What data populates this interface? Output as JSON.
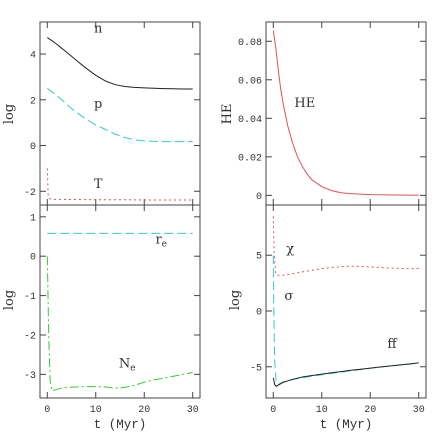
{
  "chart_data": [
    {
      "type": "line",
      "panel": "top-left",
      "ylabel": "log",
      "xlim": [
        -1.5,
        31.5
      ],
      "ylim": [
        -2.6,
        5.4
      ],
      "yticks": [
        -2,
        0,
        2,
        4
      ],
      "xticks": [
        0,
        10,
        20,
        30
      ],
      "series": [
        {
          "name": "n",
          "color": "#222222",
          "dash": "",
          "x": [
            0,
            1,
            2,
            3,
            4,
            5,
            6,
            7,
            8,
            10,
            12,
            14,
            16,
            18,
            20,
            22,
            24,
            26,
            28,
            30
          ],
          "y": [
            4.72,
            4.58,
            4.42,
            4.25,
            4.08,
            3.9,
            3.72,
            3.55,
            3.38,
            3.07,
            2.82,
            2.66,
            2.58,
            2.54,
            2.52,
            2.5,
            2.49,
            2.48,
            2.47,
            2.47
          ]
        },
        {
          "name": "p",
          "color": "#33cccc",
          "dash": "9,4",
          "x": [
            0,
            1,
            2,
            3,
            4,
            5,
            6,
            8,
            10,
            12,
            14,
            16,
            18,
            20,
            22,
            24,
            26,
            28,
            30
          ],
          "y": [
            2.5,
            2.35,
            2.18,
            2.0,
            1.8,
            1.62,
            1.45,
            1.15,
            0.9,
            0.7,
            0.5,
            0.35,
            0.25,
            0.2,
            0.18,
            0.17,
            0.17,
            0.17,
            0.17
          ]
        },
        {
          "name": "T",
          "color": "#e05252",
          "dash": "2,3",
          "x": [
            0,
            0.2,
            0.5,
            1,
            5,
            10,
            15,
            20,
            25,
            30
          ],
          "y": [
            -1.0,
            -2.2,
            -2.32,
            -2.35,
            -2.36,
            -2.37,
            -2.37,
            -2.38,
            -2.38,
            -2.38
          ]
        }
      ],
      "labels": [
        {
          "text": "n",
          "x": 10.5,
          "y": 4.95
        },
        {
          "text": "p",
          "x": 10.5,
          "y": 1.65
        },
        {
          "text": "T",
          "x": 10.5,
          "y": -1.85
        }
      ]
    },
    {
      "type": "line",
      "panel": "top-right",
      "ylabel": "HE",
      "xlim": [
        -1.5,
        31.5
      ],
      "ylim": [
        -0.005,
        0.09
      ],
      "yticks": [
        0,
        0.02,
        0.04,
        0.06,
        0.08
      ],
      "xticks": [
        0,
        10,
        20,
        30
      ],
      "series": [
        {
          "name": "HE",
          "color": "#e05252",
          "dash": "",
          "x": [
            0,
            0.5,
            1,
            1.5,
            2,
            3,
            4,
            5,
            6,
            7,
            8,
            10,
            12,
            14,
            16,
            20,
            25,
            30
          ],
          "y": [
            0.0855,
            0.077,
            0.066,
            0.056,
            0.048,
            0.036,
            0.027,
            0.02,
            0.015,
            0.011,
            0.008,
            0.0045,
            0.0025,
            0.0014,
            0.0009,
            0.0004,
            0.0002,
            0.0001
          ]
        }
      ],
      "labels": [
        {
          "text": "HE",
          "x": 6.5,
          "y": 0.046
        }
      ]
    },
    {
      "type": "line",
      "panel": "bottom-left",
      "ylabel": "log",
      "xlim": [
        -1.5,
        31.5
      ],
      "ylim": [
        -3.6,
        1.3
      ],
      "yticks": [
        -3,
        -2,
        -1,
        0,
        1
      ],
      "xticks": [
        0,
        10,
        20,
        30
      ],
      "xlabel": "t (Myr)",
      "series": [
        {
          "name": "r_e",
          "color": "#33cccc",
          "dash": "9,4",
          "x": [
            0,
            5,
            10,
            15,
            20,
            25,
            30
          ],
          "y": [
            0.58,
            0.58,
            0.58,
            0.58,
            0.58,
            0.58,
            0.58
          ]
        },
        {
          "name": "N_e",
          "color": "#33cc33",
          "dash": "9,3,2,3",
          "x": [
            0,
            0.3,
            0.6,
            1,
            2,
            3,
            4,
            6,
            8,
            10,
            12,
            14,
            16,
            18,
            20,
            22,
            24,
            26,
            28,
            30
          ],
          "y": [
            0.0,
            -2.0,
            -3.2,
            -3.42,
            -3.38,
            -3.35,
            -3.33,
            -3.32,
            -3.31,
            -3.31,
            -3.32,
            -3.35,
            -3.33,
            -3.28,
            -3.2,
            -3.14,
            -3.1,
            -3.05,
            -3.0,
            -2.95
          ]
        }
      ],
      "labels": [
        {
          "text": "r",
          "sub": "e",
          "x": 23.5,
          "y": 0.32
        },
        {
          "text": "N",
          "sub": "e",
          "x": 16.5,
          "y": -2.82
        }
      ]
    },
    {
      "type": "line",
      "panel": "bottom-right",
      "ylabel": "log",
      "xlim": [
        -1.5,
        31.5
      ],
      "ylim": [
        -7.8,
        9.5
      ],
      "yticks": [
        -5,
        0,
        5
      ],
      "xticks": [
        0,
        10,
        20,
        30
      ],
      "xlabel": "t (Myr)",
      "series": [
        {
          "name": "χ",
          "color": "#e05252",
          "dash": "2,3",
          "x": [
            0,
            0.2,
            0.5,
            1,
            2,
            4,
            6,
            8,
            10,
            12,
            14,
            16,
            18,
            20,
            22,
            24,
            26,
            28,
            30
          ],
          "y": [
            8.5,
            5.0,
            3.3,
            3.2,
            3.2,
            3.35,
            3.5,
            3.65,
            3.8,
            3.9,
            3.98,
            4.02,
            4.0,
            3.95,
            3.9,
            3.85,
            3.82,
            3.8,
            3.8
          ]
        },
        {
          "name": "σ",
          "color": "#33cccc",
          "dash": "9,4",
          "x": [
            0,
            0.1,
            0.3,
            0.6,
            1,
            2,
            4,
            6,
            8,
            10,
            12,
            14,
            16,
            18,
            20,
            22,
            24,
            26,
            28,
            30
          ],
          "y": [
            5.0,
            0.0,
            -4.5,
            -6.4,
            -6.6,
            -6.35,
            -6.15,
            -5.98,
            -5.85,
            -5.72,
            -5.6,
            -5.48,
            -5.36,
            -5.25,
            -5.14,
            -5.04,
            -4.94,
            -4.85,
            -4.76,
            -4.68
          ]
        },
        {
          "name": "ff",
          "color": "#222222",
          "dash": "",
          "x": [
            0,
            0.3,
            0.6,
            1,
            2,
            4,
            6,
            8,
            10,
            12,
            14,
            16,
            18,
            20,
            22,
            24,
            26,
            28,
            30
          ],
          "y": [
            -6.0,
            -6.6,
            -6.75,
            -6.65,
            -6.4,
            -6.12,
            -5.92,
            -5.78,
            -5.66,
            -5.54,
            -5.43,
            -5.32,
            -5.22,
            -5.12,
            -5.02,
            -4.93,
            -4.84,
            -4.75,
            -4.65
          ]
        }
      ],
      "labels": [
        {
          "text": "χ",
          "x": 3.5,
          "y": 5.2
        },
        {
          "text": "σ",
          "x": 3.2,
          "y": 1.0
        },
        {
          "text": "ff",
          "x": 24.5,
          "y": -3.3
        }
      ]
    }
  ],
  "colors": {
    "black": "#222222",
    "cyan": "#33cccc",
    "red": "#e05252",
    "green": "#33cc33"
  }
}
